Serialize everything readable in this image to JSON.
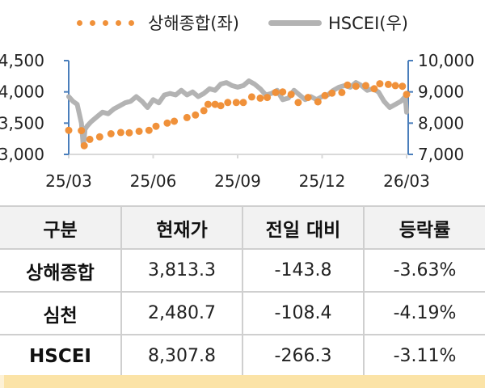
{
  "legend": {
    "series1_label": "상해종합(좌)",
    "series2_label": "HSCEI(우)"
  },
  "colors": {
    "shanghai": "#f0913a",
    "hscei": "#b3b3b3",
    "axis": "#4a7ebb",
    "baseline": "#d9d9d9",
    "header_bg": "#f2f2f2",
    "footer_band": "#fbe3a7"
  },
  "chart_data": {
    "type": "line",
    "title": "",
    "xlabel": "",
    "ylabel_left": "상해종합",
    "ylabel_right": "HSCEI",
    "x_ticks": [
      "25/03",
      "25/06",
      "25/09",
      "25/12",
      "26/03"
    ],
    "y_left_ticks": [
      "3,000",
      "3,500",
      "4,000",
      "4,500"
    ],
    "y_right_ticks": [
      "7,000",
      "8,000",
      "9,000",
      "10,000"
    ],
    "ylim_left": [
      3000,
      4500
    ],
    "ylim_right": [
      7000,
      10000
    ],
    "x_range_months": [
      0,
      12
    ],
    "grid": false,
    "legend_position": "top",
    "series": [
      {
        "name": "상해종합(좌)",
        "axis": "left",
        "style": "dotted-markers",
        "x": [
          0.0,
          0.45,
          0.55,
          0.75,
          1.1,
          1.5,
          1.85,
          2.15,
          2.5,
          2.85,
          3.1,
          3.5,
          3.75,
          4.2,
          4.5,
          4.8,
          4.95,
          5.2,
          5.4,
          5.65,
          5.95,
          6.2,
          6.5,
          6.8,
          7.05,
          7.35,
          7.6,
          7.9,
          8.15,
          8.5,
          8.85,
          9.1,
          9.35,
          9.7,
          9.9,
          10.2,
          10.55,
          10.85,
          11.05,
          11.35,
          11.6,
          11.85,
          12.0
        ],
        "values": [
          3385,
          3380,
          3140,
          3240,
          3280,
          3330,
          3350,
          3345,
          3370,
          3385,
          3450,
          3500,
          3530,
          3590,
          3630,
          3700,
          3800,
          3800,
          3780,
          3830,
          3830,
          3830,
          3920,
          3900,
          3910,
          3990,
          4000,
          3960,
          3830,
          3910,
          3840,
          3940,
          3980,
          3990,
          4110,
          4090,
          4100,
          4050,
          4130,
          4120,
          4100,
          4090,
          3960
        ]
      },
      {
        "name": "HSCEI(우)",
        "axis": "right",
        "style": "line",
        "x": [
          0.0,
          0.15,
          0.3,
          0.45,
          0.52,
          0.58,
          0.65,
          0.8,
          1.0,
          1.2,
          1.4,
          1.6,
          1.8,
          2.0,
          2.2,
          2.4,
          2.6,
          2.8,
          3.0,
          3.2,
          3.4,
          3.6,
          3.8,
          4.0,
          4.2,
          4.4,
          4.6,
          4.8,
          5.0,
          5.2,
          5.4,
          5.6,
          5.8,
          6.0,
          6.2,
          6.4,
          6.6,
          6.8,
          7.0,
          7.2,
          7.4,
          7.6,
          7.8,
          8.0,
          8.2,
          8.4,
          8.6,
          8.8,
          9.0,
          9.2,
          9.4,
          9.6,
          9.8,
          10.0,
          10.2,
          10.4,
          10.6,
          10.8,
          11.0,
          11.2,
          11.4,
          11.6,
          11.8,
          11.95,
          12.0
        ],
        "values": [
          8850,
          8700,
          8600,
          8000,
          7250,
          7800,
          7900,
          8050,
          8200,
          8350,
          8300,
          8450,
          8550,
          8650,
          8700,
          8850,
          8700,
          8500,
          8750,
          8650,
          8900,
          8950,
          8900,
          9050,
          8900,
          9000,
          8850,
          8950,
          9100,
          9050,
          9250,
          9300,
          9200,
          9150,
          9200,
          9350,
          9250,
          9100,
          8900,
          8950,
          9050,
          8750,
          8800,
          9050,
          8900,
          8750,
          8850,
          8750,
          8850,
          8900,
          9050,
          9150,
          9200,
          9150,
          9300,
          9200,
          9050,
          9100,
          9000,
          8700,
          8500,
          8600,
          8700,
          8850,
          8350
        ]
      }
    ]
  },
  "table": {
    "headers": [
      "구분",
      "현재가",
      "전일 대비",
      "등락률"
    ],
    "rows": [
      {
        "name": "상해종합",
        "price": "3,813.3",
        "change": "-143.8",
        "rate": "-3.63%"
      },
      {
        "name": "심천",
        "price": "2,480.7",
        "change": "-108.4",
        "rate": "-4.19%"
      },
      {
        "name": "HSCEI",
        "price": "8,307.8",
        "change": "-266.3",
        "rate": "-3.11%"
      }
    ]
  }
}
